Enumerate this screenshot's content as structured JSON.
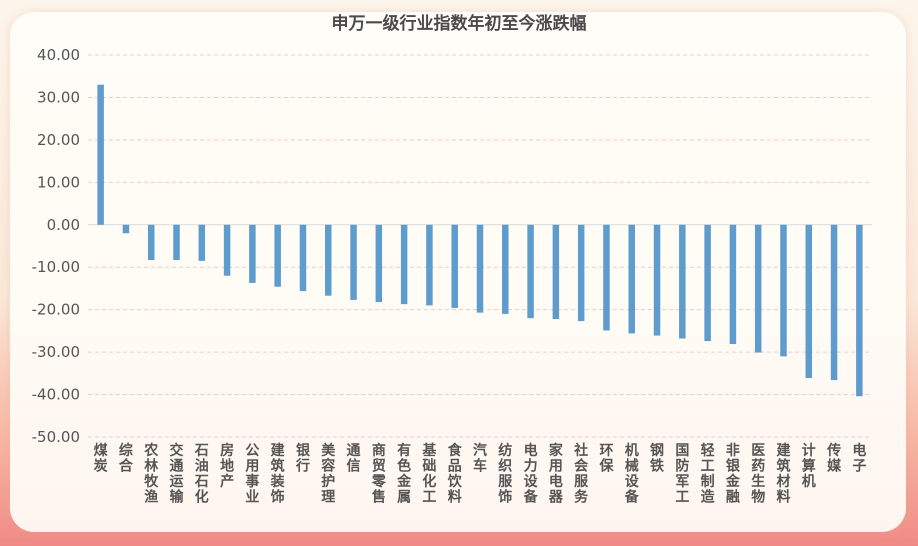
{
  "chart_data": {
    "type": "bar",
    "title": "申万一级行业指数年初至今涨跌幅",
    "xlabel": "",
    "ylabel": "",
    "ylim": [
      -50,
      40
    ],
    "yticks": [
      "40.00",
      "30.00",
      "20.00",
      "10.00",
      "0.00",
      "-10.00",
      "-20.00",
      "-30.00",
      "-40.00",
      "-50.00"
    ],
    "grid": true,
    "categories": [
      "煤炭",
      "综合",
      "农林牧渔",
      "交通运输",
      "石油石化",
      "房地产",
      "公用事业",
      "建筑装饰",
      "银行",
      "美容护理",
      "通信",
      "商贸零售",
      "有色金属",
      "基础化工",
      "食品饮料",
      "汽车",
      "纺织服饰",
      "电力设备",
      "家用电器",
      "社会服务",
      "环保",
      "机械设备",
      "钢铁",
      "国防军工",
      "轻工制造",
      "非银金融",
      "医药生物",
      "建筑材料",
      "计算机",
      "传媒",
      "电子"
    ],
    "values": [
      33.0,
      -2.0,
      -8.3,
      -8.3,
      -8.5,
      -12.0,
      -13.7,
      -14.6,
      -15.6,
      -16.7,
      -17.7,
      -18.2,
      -18.7,
      -19.0,
      -19.6,
      -20.7,
      -21.0,
      -22.0,
      -22.2,
      -22.7,
      -24.9,
      -25.6,
      -26.1,
      -26.8,
      -27.4,
      -28.1,
      -30.1,
      -31.0,
      -36.1,
      -36.6,
      -40.4
    ]
  }
}
